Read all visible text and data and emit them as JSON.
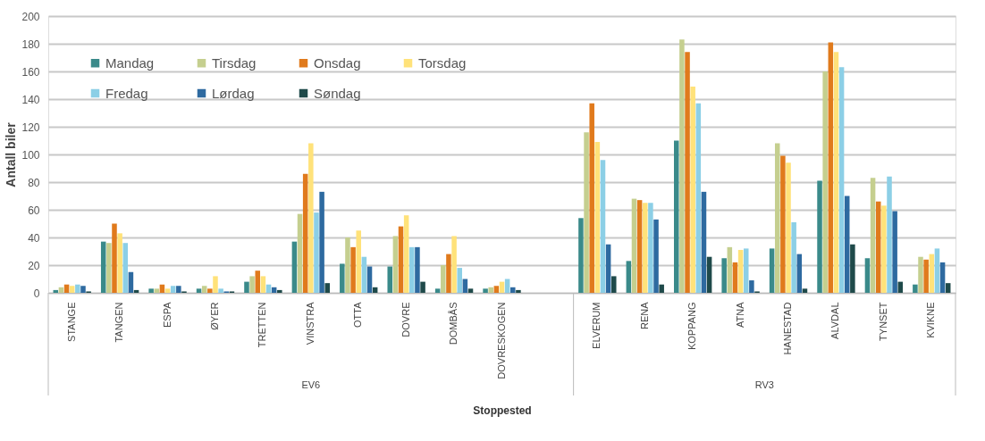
{
  "chart_data": {
    "type": "bar",
    "xlabel": "Stoppested",
    "ylabel": "Antall biler",
    "categories": [
      "STANGE",
      "TANGEN",
      "ESPA",
      "ØYER",
      "TRETTEN",
      "VINSTRA",
      "OTTA",
      "DOVRE",
      "DOMBÅS",
      "DOVRESKOGEN",
      null,
      "ELVERUM",
      "RENA",
      "KOPPANG",
      "ATNA",
      "HANESTAD",
      "ALVDAL",
      "TYNSET",
      "KVIKNE"
    ],
    "series": [
      {
        "name": "Mandag",
        "color": "#3a8a8a",
        "values": [
          2,
          37,
          3,
          3,
          8,
          37,
          21,
          19,
          3,
          3,
          null,
          54,
          23,
          110,
          25,
          32,
          81,
          25,
          6
        ]
      },
      {
        "name": "Tirsdag",
        "color": "#c5cf8f",
        "values": [
          4,
          36,
          3,
          5,
          12,
          57,
          40,
          41,
          20,
          4,
          null,
          116,
          68,
          183,
          33,
          108,
          160,
          83,
          26
        ]
      },
      {
        "name": "Onsdag",
        "color": "#e07a1c",
        "values": [
          6,
          50,
          6,
          3,
          16,
          86,
          33,
          48,
          28,
          5,
          null,
          137,
          67,
          174,
          22,
          99,
          181,
          66,
          24
        ]
      },
      {
        "name": "Torsdag",
        "color": "#ffe27a",
        "values": [
          5,
          43,
          3,
          12,
          12,
          108,
          45,
          56,
          41,
          8,
          null,
          109,
          65,
          149,
          31,
          94,
          174,
          63,
          28
        ]
      },
      {
        "name": "Fredag",
        "color": "#8ccfe6",
        "values": [
          6,
          36,
          5,
          3,
          6,
          58,
          26,
          33,
          18,
          10,
          null,
          96,
          65,
          137,
          32,
          51,
          163,
          84,
          32
        ]
      },
      {
        "name": "Lørdag",
        "color": "#2e6aa0",
        "values": [
          5,
          15,
          5,
          1,
          4,
          73,
          19,
          33,
          10,
          4,
          null,
          35,
          53,
          73,
          9,
          28,
          70,
          59,
          22
        ]
      },
      {
        "name": "Søndag",
        "color": "#1f4a4a",
        "values": [
          1,
          2,
          1,
          1,
          2,
          7,
          4,
          8,
          3,
          2,
          null,
          12,
          6,
          26,
          1,
          3,
          35,
          8,
          7
        ]
      }
    ],
    "annotations": [
      "EV6",
      "RV3"
    ],
    "ylim": [
      0,
      200
    ],
    "yticks": [
      0,
      20,
      40,
      60,
      80,
      100,
      120,
      140,
      160,
      180,
      200
    ],
    "grid": "y",
    "legend": "top left"
  }
}
